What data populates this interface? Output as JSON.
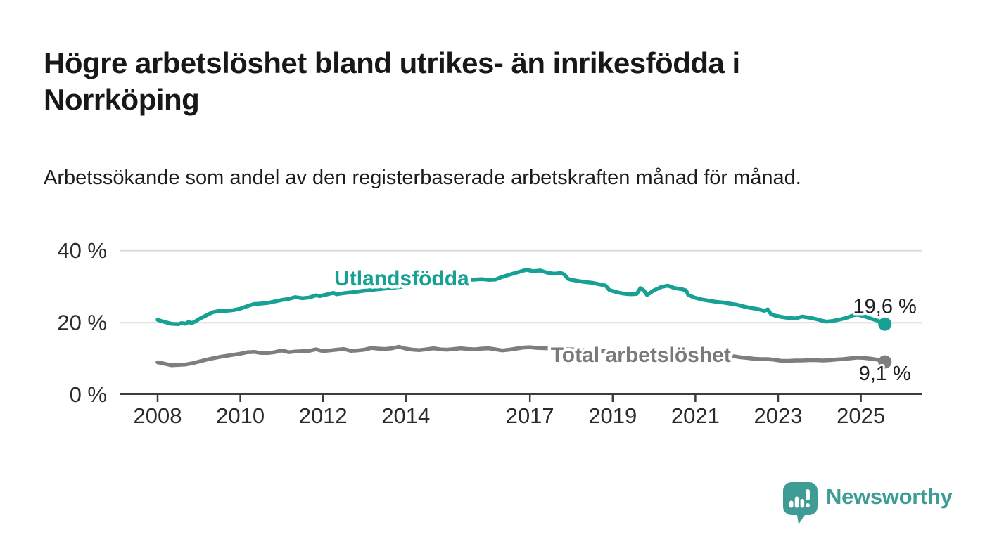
{
  "header": {
    "title": "Högre arbetslöshet bland utrikes- än inrikesfödda i Norrköping",
    "subtitle": "Arbetssökande som andel av den registerbaserade arbetskraften månad för månad."
  },
  "footer": {
    "brand": "Newsworthy"
  },
  "chart_data": {
    "type": "line",
    "unit": "%",
    "grid": "horizontal",
    "ylim": [
      0,
      40
    ],
    "xlim": [
      2007.1,
      2026.5
    ],
    "y_ticks": [
      {
        "value": 40,
        "label": "40 %"
      },
      {
        "value": 20,
        "label": "20 %"
      },
      {
        "value": 0,
        "label": "0 %"
      }
    ],
    "x_ticks": [
      {
        "value": 2008,
        "label": "2008"
      },
      {
        "value": 2010,
        "label": "2010"
      },
      {
        "value": 2012,
        "label": "2012"
      },
      {
        "value": 2014,
        "label": "2014"
      },
      {
        "value": 2017,
        "label": "2017"
      },
      {
        "value": 2019,
        "label": "2019"
      },
      {
        "value": 2021,
        "label": "2021"
      },
      {
        "value": 2023,
        "label": "2023"
      },
      {
        "value": 2025,
        "label": "2025"
      }
    ],
    "series": [
      {
        "id": "utlandsfodda",
        "name": "Utlandsfödda",
        "color": "#17A094",
        "label_color": "#17A094",
        "label_anchor": {
          "year": 2013.9,
          "pct": 32.3
        },
        "end_label": "19,6 %",
        "end_label_position": "above",
        "points": [
          [
            2008.0,
            20.8
          ],
          [
            2008.08,
            20.5
          ],
          [
            2008.17,
            20.2
          ],
          [
            2008.33,
            19.7
          ],
          [
            2008.5,
            19.6
          ],
          [
            2008.58,
            19.9
          ],
          [
            2008.67,
            19.7
          ],
          [
            2008.75,
            20.2
          ],
          [
            2008.83,
            19.9
          ],
          [
            2008.92,
            20.4
          ],
          [
            2009.0,
            21.0
          ],
          [
            2009.17,
            22.0
          ],
          [
            2009.33,
            22.9
          ],
          [
            2009.5,
            23.3
          ],
          [
            2009.67,
            23.3
          ],
          [
            2009.83,
            23.5
          ],
          [
            2010.0,
            23.9
          ],
          [
            2010.17,
            24.6
          ],
          [
            2010.33,
            25.2
          ],
          [
            2010.5,
            25.3
          ],
          [
            2010.67,
            25.5
          ],
          [
            2010.83,
            25.9
          ],
          [
            2011.0,
            26.3
          ],
          [
            2011.17,
            26.6
          ],
          [
            2011.33,
            27.1
          ],
          [
            2011.5,
            26.8
          ],
          [
            2011.67,
            27.0
          ],
          [
            2011.83,
            27.6
          ],
          [
            2011.92,
            27.4
          ],
          [
            2012.08,
            27.8
          ],
          [
            2012.25,
            28.3
          ],
          [
            2012.33,
            27.9
          ],
          [
            2012.5,
            28.2
          ],
          [
            2012.75,
            28.5
          ],
          [
            2013.0,
            28.9
          ],
          [
            2013.33,
            29.3
          ],
          [
            2013.67,
            29.7
          ],
          [
            2014.0,
            30.1
          ],
          [
            2014.33,
            30.6
          ],
          [
            2014.67,
            31.0
          ],
          [
            2015.0,
            31.3
          ],
          [
            2015.33,
            31.6
          ],
          [
            2015.67,
            32.0
          ],
          [
            2015.83,
            32.1
          ],
          [
            2016.0,
            31.9
          ],
          [
            2016.17,
            32.0
          ],
          [
            2016.33,
            32.7
          ],
          [
            2016.5,
            33.3
          ],
          [
            2016.67,
            33.9
          ],
          [
            2016.83,
            34.4
          ],
          [
            2016.92,
            34.7
          ],
          [
            2017.08,
            34.3
          ],
          [
            2017.25,
            34.5
          ],
          [
            2017.42,
            33.9
          ],
          [
            2017.58,
            33.6
          ],
          [
            2017.75,
            33.8
          ],
          [
            2017.83,
            33.4
          ],
          [
            2017.92,
            32.2
          ],
          [
            2018.0,
            31.9
          ],
          [
            2018.17,
            31.6
          ],
          [
            2018.33,
            31.3
          ],
          [
            2018.5,
            31.1
          ],
          [
            2018.67,
            30.7
          ],
          [
            2018.83,
            30.3
          ],
          [
            2018.92,
            29.1
          ],
          [
            2019.08,
            28.5
          ],
          [
            2019.25,
            28.1
          ],
          [
            2019.42,
            27.9
          ],
          [
            2019.58,
            28.0
          ],
          [
            2019.67,
            29.6
          ],
          [
            2019.75,
            29.0
          ],
          [
            2019.83,
            27.7
          ],
          [
            2020.0,
            29.0
          ],
          [
            2020.17,
            29.9
          ],
          [
            2020.33,
            30.3
          ],
          [
            2020.5,
            29.6
          ],
          [
            2020.67,
            29.3
          ],
          [
            2020.77,
            29.0
          ],
          [
            2020.83,
            27.7
          ],
          [
            2020.97,
            27.0
          ],
          [
            2021.17,
            26.4
          ],
          [
            2021.33,
            26.1
          ],
          [
            2021.5,
            25.8
          ],
          [
            2021.67,
            25.6
          ],
          [
            2021.83,
            25.3
          ],
          [
            2022.0,
            25.0
          ],
          [
            2022.17,
            24.5
          ],
          [
            2022.33,
            24.1
          ],
          [
            2022.5,
            23.8
          ],
          [
            2022.67,
            23.3
          ],
          [
            2022.75,
            23.7
          ],
          [
            2022.83,
            22.3
          ],
          [
            2022.92,
            22.0
          ],
          [
            2023.08,
            21.6
          ],
          [
            2023.25,
            21.3
          ],
          [
            2023.42,
            21.2
          ],
          [
            2023.58,
            21.7
          ],
          [
            2023.75,
            21.4
          ],
          [
            2023.92,
            21.0
          ],
          [
            2024.08,
            20.5
          ],
          [
            2024.17,
            20.3
          ],
          [
            2024.33,
            20.5
          ],
          [
            2024.5,
            20.9
          ],
          [
            2024.67,
            21.4
          ],
          [
            2024.83,
            22.1
          ],
          [
            2024.92,
            22.2
          ],
          [
            2025.08,
            21.8
          ],
          [
            2025.25,
            21.1
          ],
          [
            2025.42,
            20.5
          ],
          [
            2025.58,
            19.6
          ]
        ]
      },
      {
        "id": "total-arbetsloshet",
        "name": "Total arbetslöshet",
        "color": "#7E7E7E",
        "label_color": "#7A7A7A",
        "label_anchor": {
          "year": 2019.68,
          "pct": 11.05
        },
        "end_label": "9,1 %",
        "end_label_position": "below",
        "points": [
          [
            2008.0,
            9.0
          ],
          [
            2008.17,
            8.6
          ],
          [
            2008.33,
            8.2
          ],
          [
            2008.5,
            8.3
          ],
          [
            2008.67,
            8.4
          ],
          [
            2008.83,
            8.7
          ],
          [
            2009.0,
            9.2
          ],
          [
            2009.17,
            9.7
          ],
          [
            2009.33,
            10.1
          ],
          [
            2009.5,
            10.5
          ],
          [
            2009.67,
            10.8
          ],
          [
            2009.83,
            11.1
          ],
          [
            2010.0,
            11.4
          ],
          [
            2010.17,
            11.8
          ],
          [
            2010.33,
            11.9
          ],
          [
            2010.5,
            11.6
          ],
          [
            2010.67,
            11.6
          ],
          [
            2010.83,
            11.8
          ],
          [
            2011.0,
            12.3
          ],
          [
            2011.17,
            11.8
          ],
          [
            2011.33,
            12.0
          ],
          [
            2011.5,
            12.1
          ],
          [
            2011.67,
            12.2
          ],
          [
            2011.83,
            12.6
          ],
          [
            2012.0,
            12.1
          ],
          [
            2012.17,
            12.3
          ],
          [
            2012.33,
            12.5
          ],
          [
            2012.5,
            12.7
          ],
          [
            2012.67,
            12.2
          ],
          [
            2012.83,
            12.3
          ],
          [
            2013.0,
            12.5
          ],
          [
            2013.17,
            13.0
          ],
          [
            2013.33,
            12.8
          ],
          [
            2013.5,
            12.7
          ],
          [
            2013.67,
            12.9
          ],
          [
            2013.83,
            13.3
          ],
          [
            2014.0,
            12.8
          ],
          [
            2014.17,
            12.5
          ],
          [
            2014.33,
            12.4
          ],
          [
            2014.5,
            12.6
          ],
          [
            2014.67,
            12.9
          ],
          [
            2014.83,
            12.6
          ],
          [
            2015.0,
            12.5
          ],
          [
            2015.17,
            12.7
          ],
          [
            2015.33,
            12.9
          ],
          [
            2015.5,
            12.7
          ],
          [
            2015.67,
            12.6
          ],
          [
            2015.83,
            12.8
          ],
          [
            2016.0,
            12.9
          ],
          [
            2016.17,
            12.6
          ],
          [
            2016.33,
            12.3
          ],
          [
            2016.5,
            12.5
          ],
          [
            2016.67,
            12.8
          ],
          [
            2016.83,
            13.1
          ],
          [
            2017.0,
            13.2
          ],
          [
            2017.17,
            13.0
          ],
          [
            2017.42,
            12.9
          ],
          [
            2017.75,
            12.7
          ],
          [
            2018.0,
            12.6
          ],
          [
            2018.33,
            12.4
          ],
          [
            2018.67,
            12.2
          ],
          [
            2019.0,
            12.0
          ],
          [
            2019.33,
            11.8
          ],
          [
            2019.67,
            11.6
          ],
          [
            2020.0,
            11.6
          ],
          [
            2020.33,
            12.3
          ],
          [
            2020.58,
            12.4
          ],
          [
            2020.83,
            12.0
          ],
          [
            2021.0,
            11.8
          ],
          [
            2021.33,
            11.4
          ],
          [
            2021.67,
            11.0
          ],
          [
            2021.92,
            10.7
          ],
          [
            2022.08,
            10.4
          ],
          [
            2022.25,
            10.2
          ],
          [
            2022.42,
            10.0
          ],
          [
            2022.58,
            9.9
          ],
          [
            2022.75,
            9.9
          ],
          [
            2022.92,
            9.7
          ],
          [
            2023.08,
            9.4
          ],
          [
            2023.25,
            9.4
          ],
          [
            2023.42,
            9.5
          ],
          [
            2023.58,
            9.5
          ],
          [
            2023.75,
            9.6
          ],
          [
            2023.92,
            9.6
          ],
          [
            2024.08,
            9.5
          ],
          [
            2024.25,
            9.6
          ],
          [
            2024.42,
            9.8
          ],
          [
            2024.58,
            9.9
          ],
          [
            2024.75,
            10.1
          ],
          [
            2024.92,
            10.3
          ],
          [
            2025.08,
            10.2
          ],
          [
            2025.25,
            10.0
          ],
          [
            2025.42,
            9.7
          ],
          [
            2025.5,
            9.4
          ],
          [
            2025.58,
            9.1
          ]
        ]
      }
    ]
  }
}
